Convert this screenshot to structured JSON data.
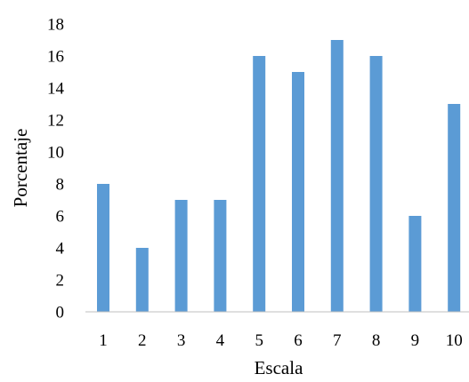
{
  "chart_data": {
    "type": "bar",
    "categories": [
      "1",
      "2",
      "3",
      "4",
      "5",
      "6",
      "7",
      "8",
      "9",
      "10"
    ],
    "values": [
      8,
      4,
      7,
      7,
      16,
      15,
      17,
      16,
      6,
      13
    ],
    "title": "",
    "xlabel": "Escala",
    "ylabel": "Porcentaje",
    "ylim": [
      0,
      18
    ],
    "yticks": [
      0,
      2,
      4,
      6,
      8,
      10,
      12,
      14,
      16,
      18
    ],
    "grid": false,
    "legend": "none",
    "bar_color": "#5b9bd5",
    "axis_color": "#bfbfbf"
  }
}
